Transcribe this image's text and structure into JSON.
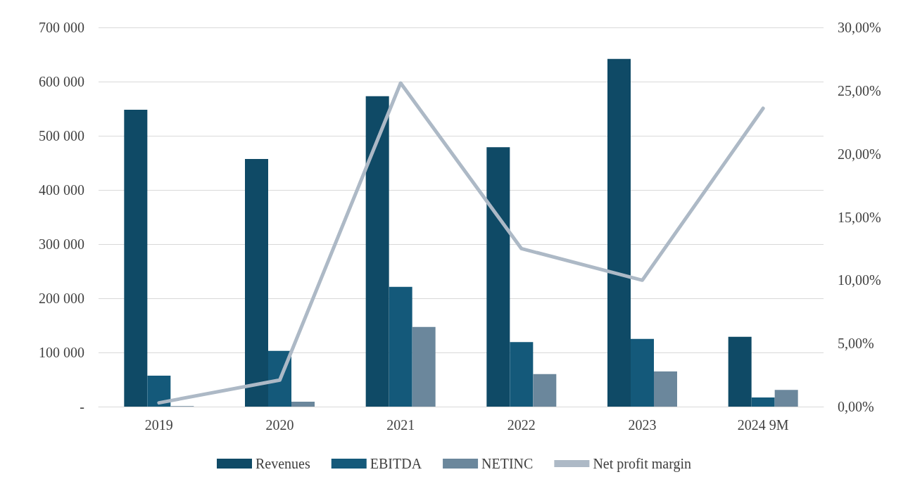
{
  "chart_data": {
    "type": "bar",
    "categories": [
      "2019",
      "2020",
      "2021",
      "2022",
      "2023",
      "2024 9M"
    ],
    "series": [
      {
        "name": "Revenues",
        "color": "#0f4a66",
        "values": [
          548000,
          457000,
          573000,
          479000,
          642000,
          129000
        ]
      },
      {
        "name": "EBITDA",
        "color": "#14597a",
        "values": [
          57000,
          103000,
          221000,
          119000,
          125000,
          17000
        ]
      },
      {
        "name": "NETINC",
        "color": "#6b879c",
        "values": [
          1000,
          9000,
          147000,
          60000,
          65000,
          31000
        ]
      },
      {
        "name": "Net profit margin",
        "type": "line",
        "axis": "y2",
        "color": "#adb9c6",
        "values": [
          0.3,
          2.1,
          25.6,
          12.5,
          10.0,
          23.6
        ]
      }
    ],
    "ylim": [
      0,
      700000
    ],
    "yticks": [
      {
        "value": 0,
        "label": "-"
      },
      {
        "value": 100000,
        "label": "100 000"
      },
      {
        "value": 200000,
        "label": "200 000"
      },
      {
        "value": 300000,
        "label": "300 000"
      },
      {
        "value": 400000,
        "label": "400 000"
      },
      {
        "value": 500000,
        "label": "500 000"
      },
      {
        "value": 600000,
        "label": "600 000"
      },
      {
        "value": 700000,
        "label": "700 000"
      }
    ],
    "y2lim": [
      0,
      30
    ],
    "y2ticks": [
      {
        "value": 0,
        "label": "0,00%"
      },
      {
        "value": 5,
        "label": "5,00%"
      },
      {
        "value": 10,
        "label": "10,00%"
      },
      {
        "value": 15,
        "label": "15,00%"
      },
      {
        "value": 20,
        "label": "20,00%"
      },
      {
        "value": 25,
        "label": "25,00%"
      },
      {
        "value": 30,
        "label": "30,00%"
      }
    ],
    "grid": "y",
    "legend": "bottom",
    "marker": "none",
    "line_style": "solid"
  }
}
